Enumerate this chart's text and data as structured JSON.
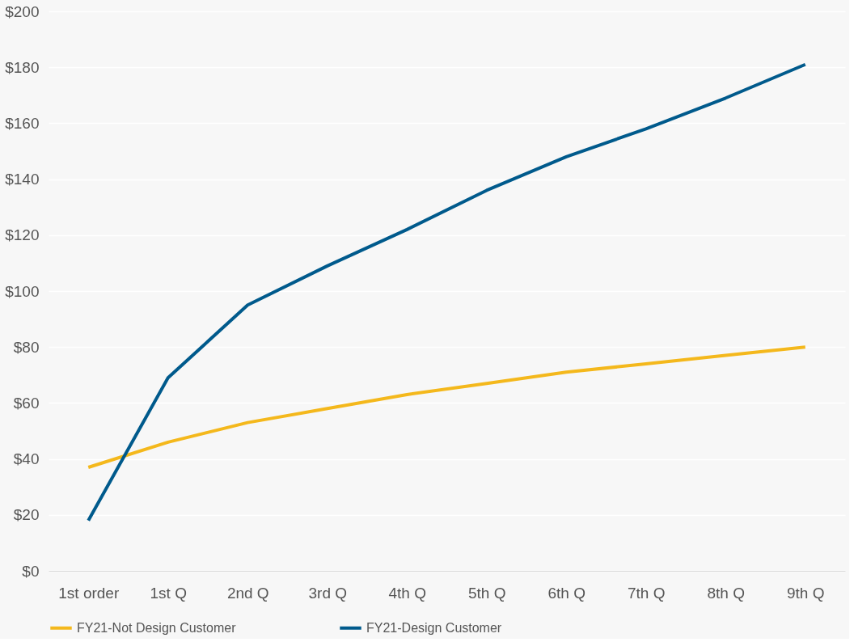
{
  "chart_data": {
    "type": "line",
    "categories": [
      "1st order",
      "1st Q",
      "2nd Q",
      "3rd Q",
      "4th Q",
      "5th Q",
      "6th Q",
      "7th Q",
      "8th Q",
      "9th Q"
    ],
    "series": [
      {
        "name": "FY21-Not Design Customer",
        "color": "#f4b81c",
        "values": [
          37,
          46,
          53,
          58,
          63,
          67,
          71,
          74,
          77,
          80
        ]
      },
      {
        "name": "FY21-Design Customer",
        "color": "#005a8c",
        "values": [
          18,
          69,
          95,
          109,
          122,
          136,
          148,
          158,
          169,
          181
        ]
      }
    ],
    "ylim": [
      0,
      200
    ],
    "yticks": [
      {
        "value": 0,
        "label": "$0"
      },
      {
        "value": 20,
        "label": "$20"
      },
      {
        "value": 40,
        "label": "$40"
      },
      {
        "value": 60,
        "label": "$60"
      },
      {
        "value": 80,
        "label": "$80"
      },
      {
        "value": 100,
        "label": "$100"
      },
      {
        "value": 120,
        "label": "$120"
      },
      {
        "value": 140,
        "label": "$140"
      },
      {
        "value": 160,
        "label": "$160"
      },
      {
        "value": 180,
        "label": "$180"
      },
      {
        "value": 200,
        "label": "$200"
      }
    ],
    "grid": "y",
    "legend": "bottom",
    "marker": "none",
    "line_style": "solid"
  }
}
